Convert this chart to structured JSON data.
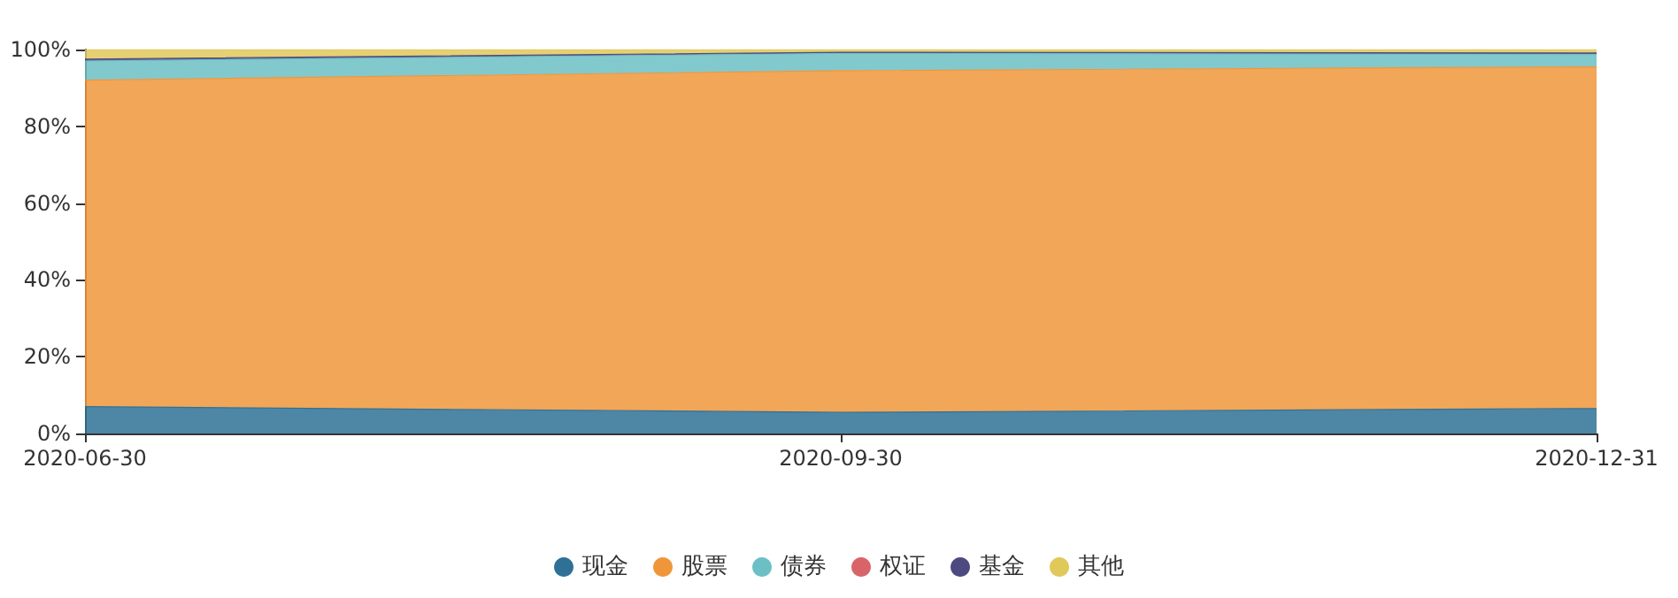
{
  "chart_data": {
    "type": "area",
    "stacked": true,
    "categories": [
      "2020-06-30",
      "2020-09-30",
      "2020-12-31"
    ],
    "series": [
      {
        "name": "现金",
        "color": "#2f7196",
        "values": [
          7,
          5.5,
          6.5
        ]
      },
      {
        "name": "股票",
        "color": "#f0963a",
        "values": [
          85,
          89,
          89
        ]
      },
      {
        "name": "债券",
        "color": "#6cc0c5",
        "values": [
          5,
          4.5,
          3.2
        ]
      },
      {
        "name": "权证",
        "color": "#d8646a",
        "values": [
          null,
          null,
          null
        ]
      },
      {
        "name": "基金",
        "color": "#4c4a7f",
        "values": [
          0.5,
          0.3,
          0.4
        ]
      },
      {
        "name": "其他",
        "color": "#e0c85a",
        "values": [
          2.5,
          0.7,
          0.9
        ]
      }
    ],
    "ylim": [
      0,
      100
    ],
    "yticks": [
      {
        "value": 0,
        "label": "0%"
      },
      {
        "value": 20,
        "label": "20%"
      },
      {
        "value": 40,
        "label": "40%"
      },
      {
        "value": 60,
        "label": "60%"
      },
      {
        "value": 80,
        "label": "80%"
      },
      {
        "value": 100,
        "label": "100%"
      }
    ],
    "legend": "bottom",
    "grid": false,
    "marker": "none"
  }
}
